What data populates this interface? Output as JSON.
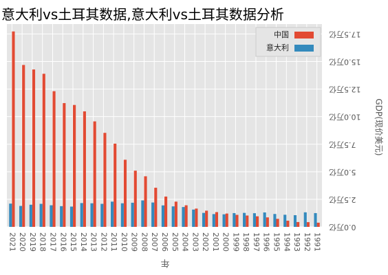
{
  "chart_data": {
    "type": "bar",
    "title": "意大利vs土耳其数据,意大利vs土耳其数据分析",
    "x_label": "年",
    "y_label": "GDP(现价美元)",
    "categories": [
      "1991",
      "1992",
      "1993",
      "1994",
      "1995",
      "1996",
      "1997",
      "1998",
      "1999",
      "2000",
      "2001",
      "2002",
      "2003",
      "2004",
      "2005",
      "2006",
      "2007",
      "2008",
      "2009",
      "2010",
      "2011",
      "2012",
      "2013",
      "2014",
      "2015",
      "2016",
      "2017",
      "2018",
      "2019",
      "2020",
      "2021"
    ],
    "series": [
      {
        "name": "中国",
        "color": "#E24A33",
        "values": [
          0.38,
          0.43,
          0.44,
          0.56,
          0.73,
          0.86,
          0.96,
          1.03,
          1.09,
          1.21,
          1.34,
          1.47,
          1.66,
          1.96,
          2.29,
          2.75,
          3.55,
          4.59,
          5.1,
          6.09,
          7.55,
          8.53,
          9.57,
          10.48,
          11.06,
          11.23,
          12.31,
          13.89,
          14.28,
          14.69,
          17.73
        ]
      },
      {
        "name": "意大利",
        "color": "#348ABD",
        "values": [
          1.25,
          1.32,
          1.06,
          1.1,
          1.17,
          1.31,
          1.24,
          1.27,
          1.25,
          1.14,
          1.16,
          1.27,
          1.57,
          1.8,
          1.86,
          1.95,
          2.21,
          2.4,
          2.19,
          2.14,
          2.29,
          2.09,
          2.14,
          2.16,
          1.84,
          1.88,
          1.96,
          2.09,
          2.01,
          1.9,
          2.11
        ]
      }
    ],
    "ylim": [
      0,
      18.4
    ],
    "yticks": [
      {
        "value": 0,
        "label": "0.0万亿"
      },
      {
        "value": 2.5,
        "label": "2.5万亿"
      },
      {
        "value": 5,
        "label": "5.0万亿"
      },
      {
        "value": 7.5,
        "label": "7.5万亿"
      },
      {
        "value": 10,
        "label": "10.0万亿"
      },
      {
        "value": 12.5,
        "label": "12.5万亿"
      },
      {
        "value": 15,
        "label": "15.0万亿"
      },
      {
        "value": 17.5,
        "label": "17.5万亿"
      }
    ],
    "grid": true,
    "legend": "upper right"
  }
}
